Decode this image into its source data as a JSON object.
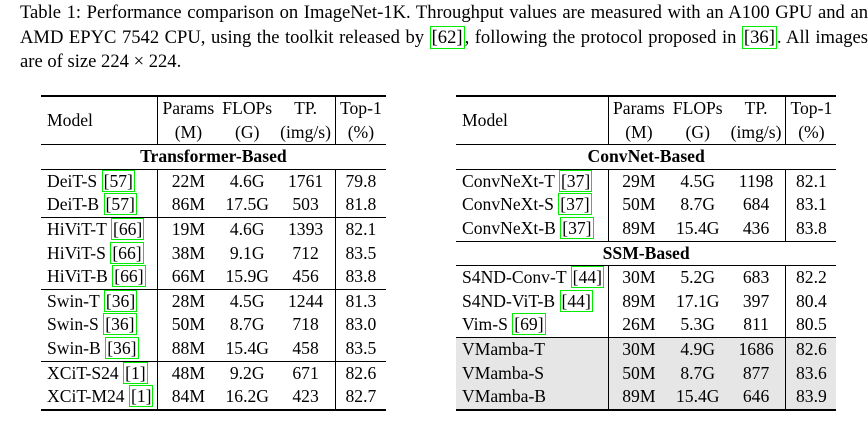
{
  "caption": {
    "before": "Table 1: Performance comparison on ImageNet-1K. Throughput values are measured with an A100 GPU and an AMD EPYC 7542 CPU, using the toolkit released by ",
    "cite1": "[62]",
    "middle": ", following the protocol proposed in ",
    "cite2": "[36]",
    "after": ". All images are of size 224 × 224."
  },
  "header": {
    "model": "Model",
    "params": "Params",
    "params_unit": "(M)",
    "flops": "FLOPs",
    "flops_unit": "(G)",
    "tp": "TP.",
    "tp_unit": "(img/s)",
    "top1": "Top-1",
    "top1_unit": "(%)"
  },
  "left": {
    "section": "Transformer-Based",
    "rows": [
      {
        "name": "DeiT-S",
        "ref": "[57]",
        "params": "22M",
        "flops": "4.6G",
        "tp": "1761",
        "top1": "79.8"
      },
      {
        "name": "DeiT-B",
        "ref": "[57]",
        "params": "86M",
        "flops": "17.5G",
        "tp": "503",
        "top1": "81.8"
      },
      {
        "name": "HiViT-T",
        "ref": "[66]",
        "params": "19M",
        "flops": "4.6G",
        "tp": "1393",
        "top1": "82.1"
      },
      {
        "name": "HiViT-S",
        "ref": "[66]",
        "params": "38M",
        "flops": "9.1G",
        "tp": "712",
        "top1": "83.5"
      },
      {
        "name": "HiViT-B",
        "ref": "[66]",
        "params": "66M",
        "flops": "15.9G",
        "tp": "456",
        "top1": "83.8"
      },
      {
        "name": "Swin-T",
        "ref": "[36]",
        "params": "28M",
        "flops": "4.5G",
        "tp": "1244",
        "top1": "81.3"
      },
      {
        "name": "Swin-S",
        "ref": "[36]",
        "params": "50M",
        "flops": "8.7G",
        "tp": "718",
        "top1": "83.0"
      },
      {
        "name": "Swin-B",
        "ref": "[36]",
        "params": "88M",
        "flops": "15.4G",
        "tp": "458",
        "top1": "83.5"
      },
      {
        "name": "XCiT-S24",
        "ref": "[1]",
        "params": "48M",
        "flops": "9.2G",
        "tp": "671",
        "top1": "82.6"
      },
      {
        "name": "XCiT-M24",
        "ref": "[1]",
        "params": "84M",
        "flops": "16.2G",
        "tp": "423",
        "top1": "82.7"
      }
    ]
  },
  "right": {
    "section1": "ConvNet-Based",
    "rows1": [
      {
        "name": "ConvNeXt-T",
        "ref": "[37]",
        "params": "29M",
        "flops": "4.5G",
        "tp": "1198",
        "top1": "82.1"
      },
      {
        "name": "ConvNeXt-S",
        "ref": "[37]",
        "params": "50M",
        "flops": "8.7G",
        "tp": "684",
        "top1": "83.1"
      },
      {
        "name": "ConvNeXt-B",
        "ref": "[37]",
        "params": "89M",
        "flops": "15.4G",
        "tp": "436",
        "top1": "83.8"
      }
    ],
    "section2": "SSM-Based",
    "rows2": [
      {
        "name": "S4ND-Conv-T",
        "ref": "[44]",
        "params": "30M",
        "flops": "5.2G",
        "tp": "683",
        "top1": "82.2"
      },
      {
        "name": "S4ND-ViT-B",
        "ref": "[44]",
        "params": "89M",
        "flops": "17.1G",
        "tp": "397",
        "top1": "80.4"
      },
      {
        "name": "Vim-S",
        "ref": "[69]",
        "params": "26M",
        "flops": "5.3G",
        "tp": "811",
        "top1": "80.5"
      },
      {
        "name": "VMamba-T",
        "ref": "",
        "params": "30M",
        "flops": "4.9G",
        "tp": "1686",
        "top1": "82.6"
      },
      {
        "name": "VMamba-S",
        "ref": "",
        "params": "50M",
        "flops": "8.7G",
        "tp": "877",
        "top1": "83.6"
      },
      {
        "name": "VMamba-B",
        "ref": "",
        "params": "89M",
        "flops": "15.4G",
        "tp": "646",
        "top1": "83.9"
      }
    ]
  },
  "colors": {
    "citation_box": "#00ee00",
    "highlight_row": "#e6e6e6"
  }
}
